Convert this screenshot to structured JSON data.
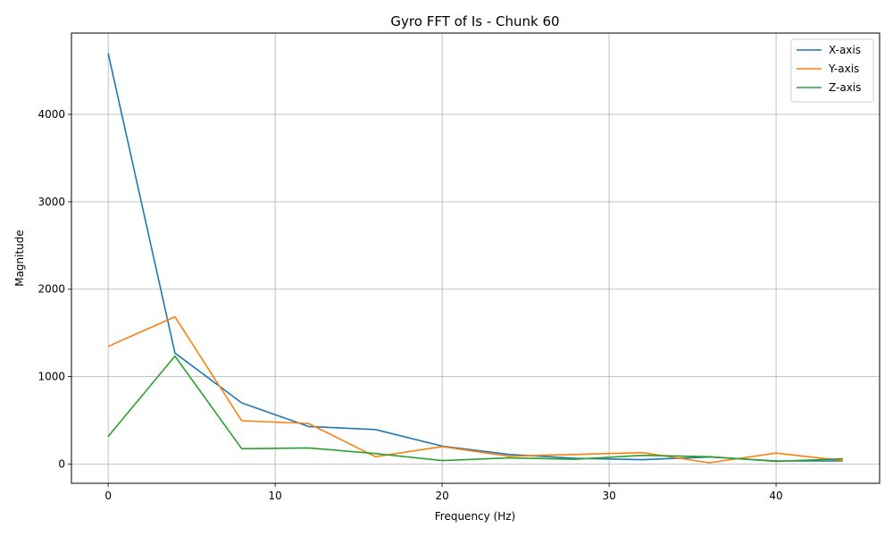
{
  "chart_data": {
    "type": "line",
    "title": "Gyro FFT of Is - Chunk 60",
    "xlabel": "Frequency (Hz)",
    "ylabel": "Magnitude",
    "xlim": [
      -2.2,
      46.2
    ],
    "ylim": [
      -220,
      4930
    ],
    "xticks": [
      0,
      10,
      20,
      30,
      40
    ],
    "yticks": [
      0,
      1000,
      2000,
      3000,
      4000
    ],
    "grid": true,
    "legend_position": "top-right",
    "x": [
      0,
      4,
      8,
      12,
      16,
      20,
      24,
      28,
      32,
      36,
      40,
      44
    ],
    "series": [
      {
        "name": "X-axis",
        "color": "#1f77b4",
        "values": [
          4700,
          1270,
          700,
          430,
          395,
          205,
          110,
          65,
          50,
          80,
          35,
          35
        ]
      },
      {
        "name": "Y-axis",
        "color": "#ff7f0e",
        "values": [
          1345,
          1685,
          495,
          465,
          85,
          200,
          90,
          110,
          130,
          15,
          125,
          40
        ]
      },
      {
        "name": "Z-axis",
        "color": "#2ca02c",
        "values": [
          315,
          1235,
          175,
          185,
          120,
          40,
          70,
          55,
          100,
          85,
          30,
          60
        ]
      }
    ]
  }
}
